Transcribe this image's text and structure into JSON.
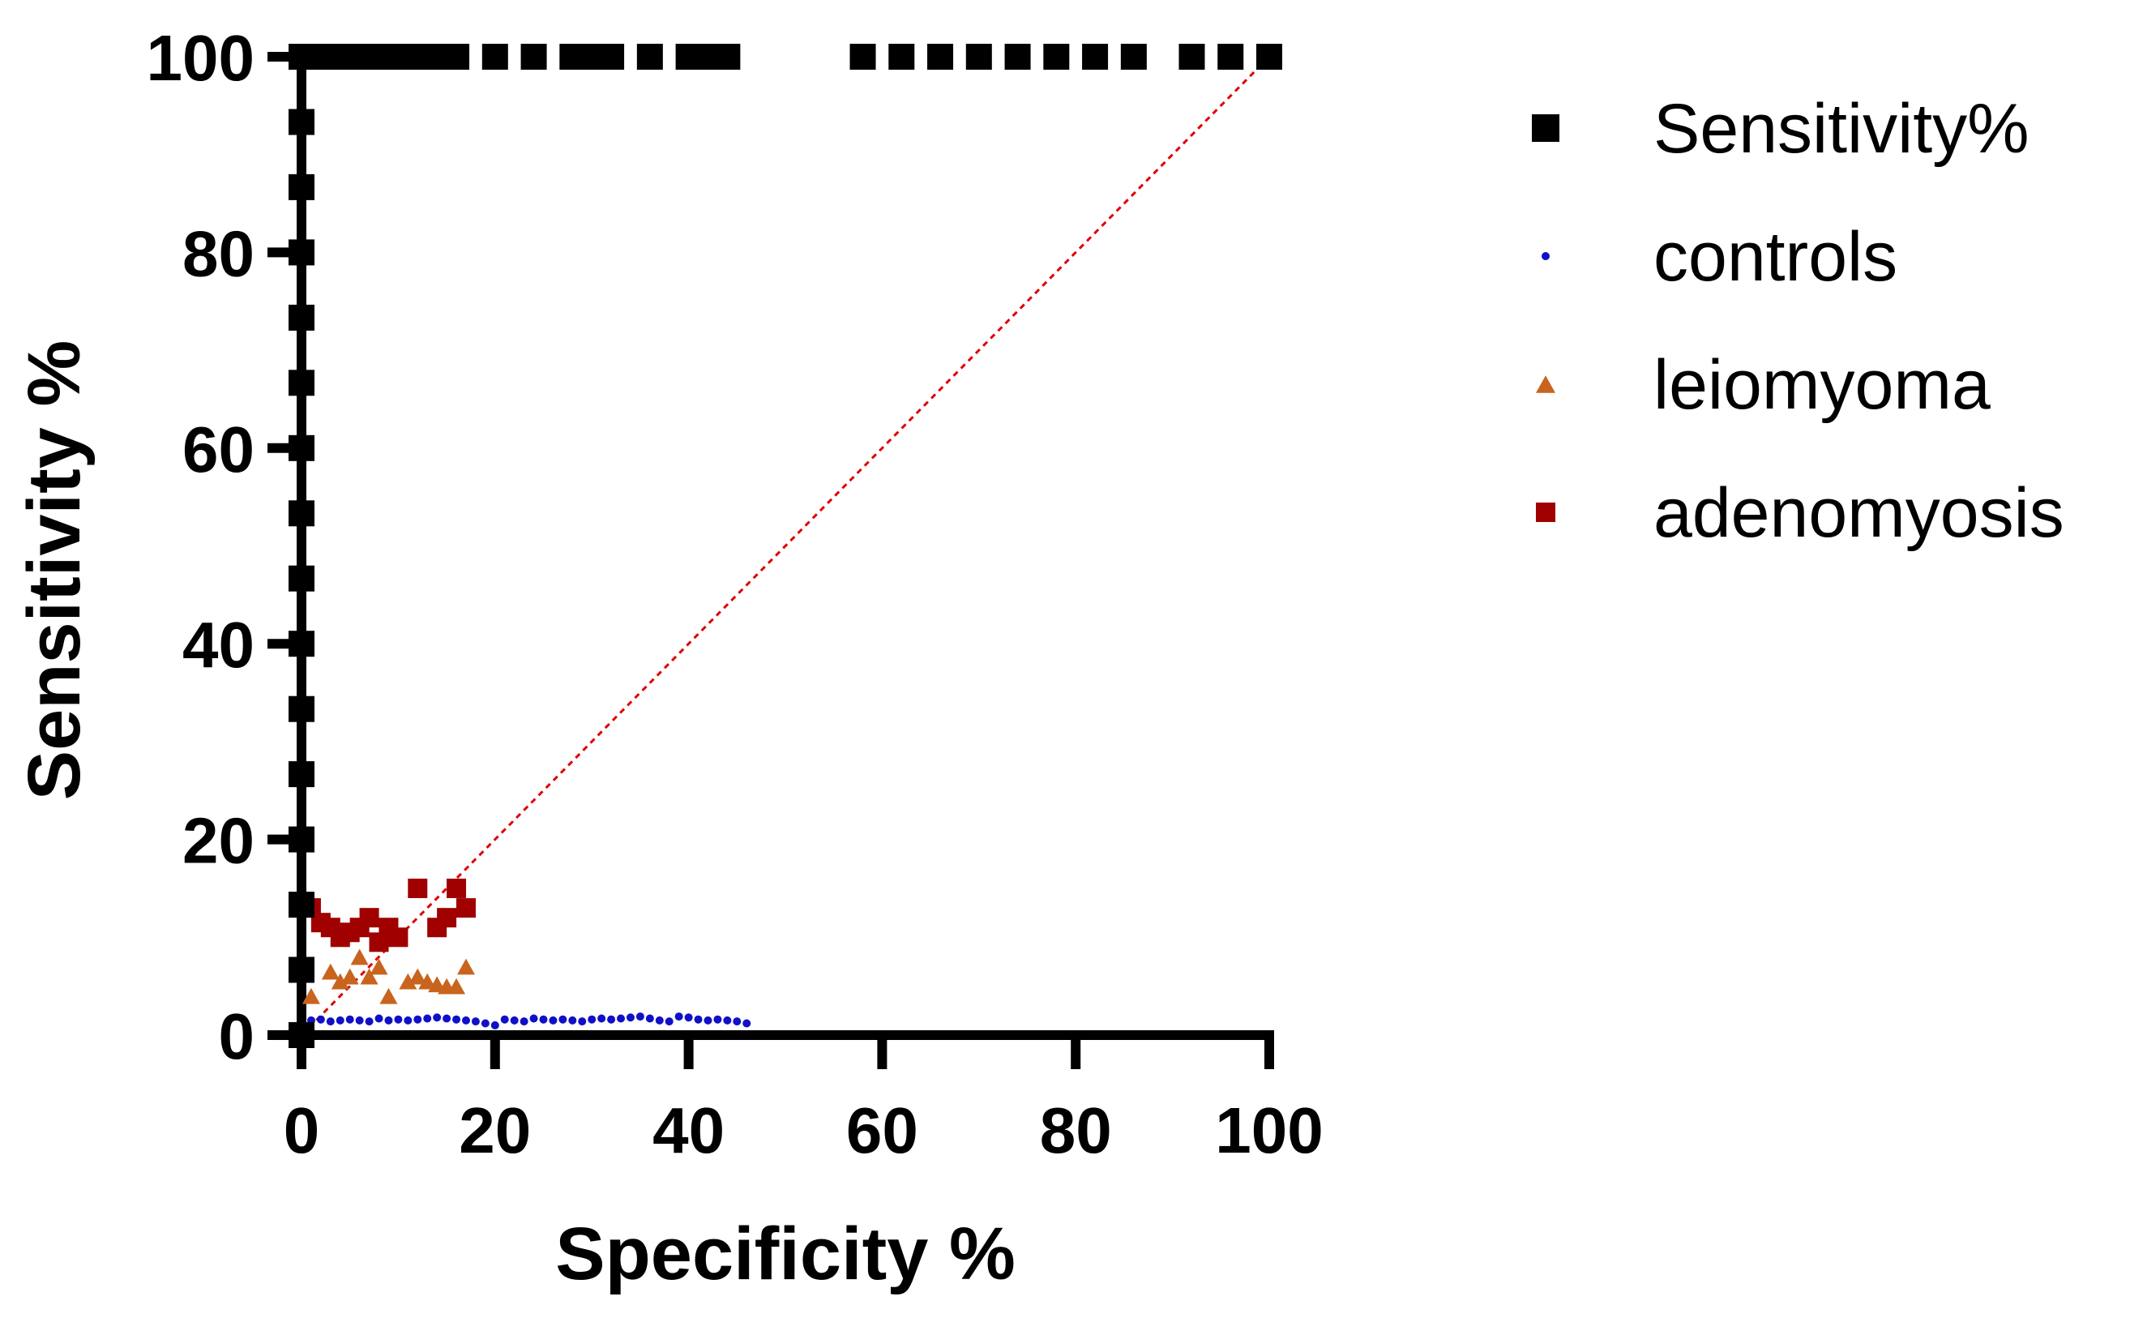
{
  "chart_data": {
    "type": "scatter",
    "xlabel": "Specificity %",
    "ylabel": "Sensitivity %",
    "xlim": [
      0,
      100
    ],
    "ylim": [
      0,
      100
    ],
    "xticks": [
      "0",
      "20",
      "40",
      "60",
      "80",
      "100"
    ],
    "yticks": [
      "0",
      "20",
      "40",
      "60",
      "80",
      "100"
    ],
    "reference_line": {
      "from": [
        0,
        0
      ],
      "to": [
        100,
        100
      ],
      "color": "#e00000",
      "style": "dotted"
    },
    "legend_position": "right",
    "series": [
      {
        "name": "Sensitivity%",
        "marker": "square",
        "color": "#000000",
        "points": [
          [
            0,
            0
          ],
          [
            0,
            6.67
          ],
          [
            0,
            13.33
          ],
          [
            0,
            20
          ],
          [
            0,
            26.67
          ],
          [
            0,
            33.33
          ],
          [
            0,
            40
          ],
          [
            0,
            46.67
          ],
          [
            0,
            53.33
          ],
          [
            0,
            60
          ],
          [
            0,
            66.67
          ],
          [
            0,
            73.33
          ],
          [
            0,
            80
          ],
          [
            0,
            86.67
          ],
          [
            0,
            93.33
          ],
          [
            0,
            100
          ],
          [
            2,
            100
          ],
          [
            4,
            100
          ],
          [
            6,
            100
          ],
          [
            8,
            100
          ],
          [
            10,
            100
          ],
          [
            12,
            100
          ],
          [
            14,
            100
          ],
          [
            16,
            100
          ],
          [
            20,
            100
          ],
          [
            24,
            100
          ],
          [
            28,
            100
          ],
          [
            30,
            100
          ],
          [
            32,
            100
          ],
          [
            36,
            100
          ],
          [
            40,
            100
          ],
          [
            42,
            100
          ],
          [
            44,
            100
          ],
          [
            58,
            100
          ],
          [
            62,
            100
          ],
          [
            66,
            100
          ],
          [
            70,
            100
          ],
          [
            74,
            100
          ],
          [
            78,
            100
          ],
          [
            82,
            100
          ],
          [
            86,
            100
          ],
          [
            92,
            100
          ],
          [
            96,
            100
          ],
          [
            100,
            100
          ]
        ]
      },
      {
        "name": "controls",
        "marker": "circle",
        "color": "#1010c8",
        "points": [
          [
            1,
            1.5
          ],
          [
            2,
            1.6
          ],
          [
            3,
            1.4
          ],
          [
            4,
            1.5
          ],
          [
            5,
            1.6
          ],
          [
            6,
            1.5
          ],
          [
            7,
            1.4
          ],
          [
            8,
            1.7
          ],
          [
            9,
            1.5
          ],
          [
            10,
            1.6
          ],
          [
            11,
            1.5
          ],
          [
            12,
            1.6
          ],
          [
            13,
            1.7
          ],
          [
            14,
            1.8
          ],
          [
            15,
            1.7
          ],
          [
            16,
            1.6
          ],
          [
            17,
            1.5
          ],
          [
            18,
            1.4
          ],
          [
            19,
            1.2
          ],
          [
            20,
            1.0
          ],
          [
            21,
            1.6
          ],
          [
            22,
            1.5
          ],
          [
            23,
            1.4
          ],
          [
            24,
            1.7
          ],
          [
            25,
            1.6
          ],
          [
            26,
            1.5
          ],
          [
            27,
            1.6
          ],
          [
            28,
            1.5
          ],
          [
            29,
            1.4
          ],
          [
            30,
            1.6
          ],
          [
            31,
            1.7
          ],
          [
            32,
            1.6
          ],
          [
            33,
            1.7
          ],
          [
            34,
            1.8
          ],
          [
            35,
            1.9
          ],
          [
            36,
            1.7
          ],
          [
            37,
            1.5
          ],
          [
            38,
            1.4
          ],
          [
            39,
            1.9
          ],
          [
            40,
            1.8
          ],
          [
            41,
            1.6
          ],
          [
            42,
            1.5
          ],
          [
            43,
            1.6
          ],
          [
            44,
            1.5
          ],
          [
            45,
            1.4
          ],
          [
            46,
            1.2
          ]
        ]
      },
      {
        "name": "leiomyoma",
        "marker": "triangle",
        "color": "#c8641e",
        "points": [
          [
            1,
            4
          ],
          [
            3,
            6.5
          ],
          [
            4,
            5.5
          ],
          [
            5,
            6
          ],
          [
            6,
            8
          ],
          [
            7,
            6
          ],
          [
            8,
            7
          ],
          [
            9,
            4
          ],
          [
            11,
            5.5
          ],
          [
            12,
            6
          ],
          [
            13,
            5.5
          ],
          [
            14,
            5.2
          ],
          [
            15,
            5
          ],
          [
            16,
            5
          ],
          [
            17,
            7
          ]
        ]
      },
      {
        "name": "adenomyosis",
        "marker": "square",
        "color": "#a00000",
        "points": [
          [
            1,
            13
          ],
          [
            2,
            11.5
          ],
          [
            3,
            11
          ],
          [
            4,
            10
          ],
          [
            5,
            10.5
          ],
          [
            6,
            11
          ],
          [
            7,
            12
          ],
          [
            8,
            9.5
          ],
          [
            9,
            11
          ],
          [
            10,
            10
          ],
          [
            12,
            15
          ],
          [
            14,
            11
          ],
          [
            15,
            12
          ],
          [
            16,
            15
          ],
          [
            17,
            13
          ]
        ]
      }
    ]
  }
}
